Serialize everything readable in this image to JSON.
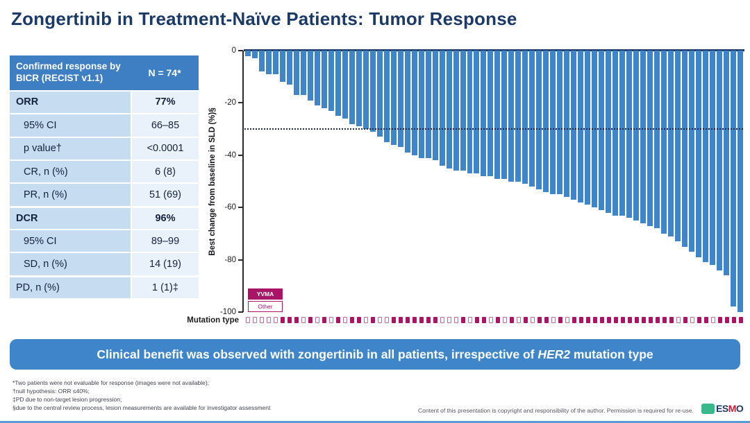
{
  "title": "Zongertinib in Treatment-Naïve Patients: Tumor Response",
  "table": {
    "header_label": "Confirmed response by BICR (RECIST v1.1)",
    "header_value": "N = 74*",
    "rows": [
      {
        "label": "ORR",
        "value": "77%",
        "bold": true,
        "indent": false,
        "section": false
      },
      {
        "label": "95% CI",
        "value": "66–85",
        "bold": false,
        "indent": true,
        "section": false
      },
      {
        "label": "p value†",
        "value": "<0.0001",
        "bold": false,
        "indent": true,
        "section": false
      },
      {
        "label": "CR, n (%)",
        "value": "6 (8)",
        "bold": false,
        "indent": true,
        "section": false
      },
      {
        "label": "PR, n (%)",
        "value": "51 (69)",
        "bold": false,
        "indent": true,
        "section": false
      },
      {
        "label": "DCR",
        "value": "96%",
        "bold": true,
        "indent": false,
        "section": true
      },
      {
        "label": "95% CI",
        "value": "89–99",
        "bold": false,
        "indent": true,
        "section": false
      },
      {
        "label": "SD, n (%)",
        "value": "14 (19)",
        "bold": false,
        "indent": true,
        "section": false
      },
      {
        "label": "PD, n (%)",
        "value": "1 (1)‡",
        "bold": false,
        "indent": false,
        "section": true
      }
    ]
  },
  "chart_data": {
    "type": "bar",
    "title": "Waterfall plot of best tumor response per patient",
    "ylabel": "Best change from baseline in SLD (%)§",
    "xlabel": "Mutation type",
    "ylim": [
      -100,
      0
    ],
    "yticks": [
      0,
      -20,
      -40,
      -60,
      -80,
      -100
    ],
    "reference_line": -30,
    "grid": false,
    "bar_color": "#3E86C9",
    "values": [
      -2,
      -3,
      -8,
      -9,
      -9,
      -12,
      -13,
      -17,
      -17,
      -19,
      -21,
      -22,
      -23,
      -25,
      -26,
      -28,
      -29,
      -30,
      -31,
      -33,
      -35,
      -36,
      -37,
      -39,
      -40,
      -41,
      -41,
      -42,
      -44,
      -45,
      -46,
      -46,
      -47,
      -47,
      -48,
      -48,
      -49,
      -49,
      -50,
      -50,
      -51,
      -52,
      -53,
      -54,
      -55,
      -55,
      -56,
      -57,
      -58,
      -59,
      -60,
      -61,
      -62,
      -63,
      -63,
      -64,
      -65,
      -66,
      -67,
      -68,
      -70,
      -71,
      -73,
      -75,
      -77,
      -79,
      -81,
      -82,
      -84,
      -86,
      -98,
      -100
    ],
    "mutation_pattern": "OOOOOYYYOYOYOYOYYOYOOYYYYYYYOOOYOYYOYOYOYOYYOYOYYYYYYYYYYYYYYYOYOYYOYYYY",
    "legend": [
      {
        "label": "YVMA",
        "fill": "#AA1467",
        "text_color": "#ffffff"
      },
      {
        "label": "Other",
        "fill": "#ffffff",
        "text_color": "#AA1467"
      }
    ],
    "legend_position": "lower-left"
  },
  "mutation_row_label": "Mutation type",
  "banner": {
    "prefix": "Clinical benefit was observed with zongertinib in all patients, irrespective of ",
    "emphasis": "HER2",
    "suffix": " mutation type"
  },
  "footnotes": [
    "*Two patients were not evaluable for response (images were not available);",
    "†null hypothesis: ORR ≤40%;",
    "‡PD due to non-target lesion progression;",
    "§due to the central review process, lesion measurements are available for investigator assessment"
  ],
  "copyright": "Content of this presentation is copyright and responsibility of the author. Permission is required for re-use.",
  "logo": {
    "letters": [
      "ES",
      "M",
      "O"
    ]
  },
  "colors": {
    "title_navy": "#1B3A68",
    "table_header_blue": "#3E7FC4",
    "table_label_blue": "#C6DCF1",
    "table_value_blue": "#E9F1FA",
    "bar_blue": "#3E86C9",
    "magenta": "#AA1467",
    "banner_blue": "#3E86C9"
  }
}
